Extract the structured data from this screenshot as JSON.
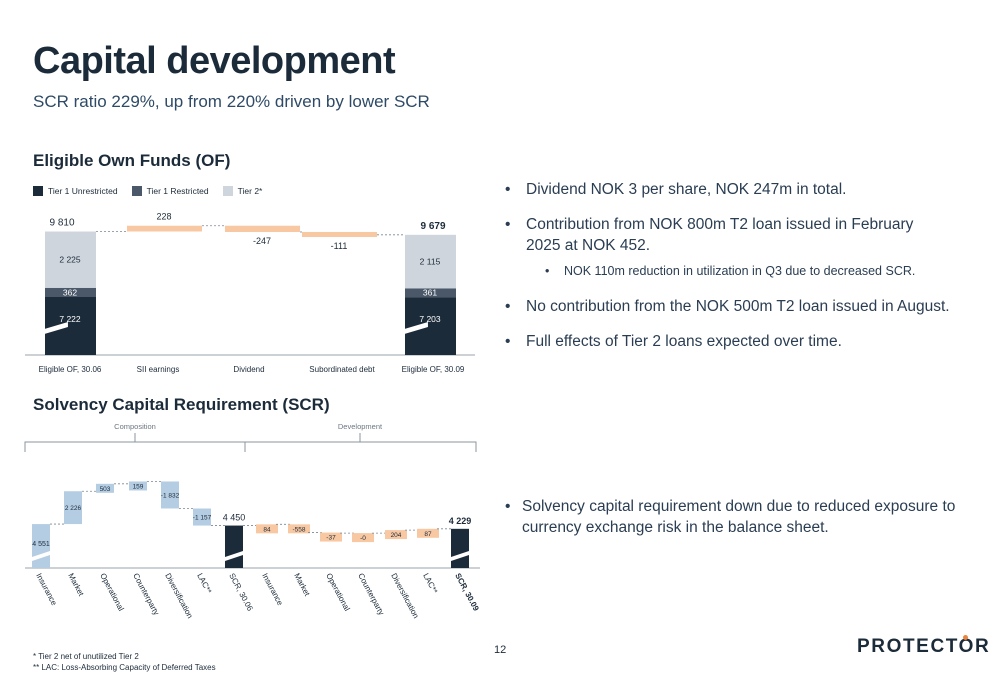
{
  "page": {
    "title": "Capital development",
    "subtitle": "SCR ratio 229%, up from 220% driven by lower SCR",
    "page_number": "12",
    "logo": "PROTECTOR",
    "footnotes": [
      "* Tier 2 net of unutilized Tier 2",
      "** LAC: Loss-Absorbing Capacity of Deferred Taxes"
    ]
  },
  "sections": {
    "of_heading": "Eligible Own Funds (OF)",
    "scr_heading": "Solvency Capital Requirement (SCR)"
  },
  "colors": {
    "tier1_unrestricted": "#1c2b3a",
    "tier1_restricted": "#4a5869",
    "tier2": "#cfd5dc",
    "positive": "#f8c8a3",
    "scr_bar": "#b4cde3",
    "scr_total": "#1c2b3a",
    "accent": "#e8853e"
  },
  "bullets_top": [
    {
      "text": "Dividend NOK 3 per share, NOK 247m in total."
    },
    {
      "text": "Contribution from NOK 800m T2 loan issued in February 2025 at NOK 452."
    },
    {
      "text": "NOK 110m reduction in utilization in Q3 due to decreased SCR.",
      "sub": true
    },
    {
      "text": "No contribution from the NOK 500m T2 loan issued in August."
    },
    {
      "text": "Full effects of Tier 2 loans expected over time."
    }
  ],
  "bullets_bottom": [
    {
      "text": "Solvency capital requirement down due to reduced exposure to currency exchange risk in the balance sheet."
    }
  ],
  "chart_data": [
    {
      "type": "bar",
      "subtype": "waterfall-stacked",
      "title": "Eligible Own Funds (OF)",
      "legend": [
        "Tier 1 Unrestricted",
        "Tier 1 Restricted",
        "Tier 2*"
      ],
      "legend_position": "top-left",
      "categories": [
        "Eligible OF, 30.06",
        "SII earnings",
        "Dividend",
        "Subordinated debt",
        "Eligible OF, 30.09"
      ],
      "totals": [
        {
          "category": "Eligible OF, 30.06",
          "total": "9 810",
          "tier1_unrestricted": 7222,
          "tier1_restricted": 362,
          "tier2": 2225,
          "labels": {
            "tier1_unrestricted": "7 222",
            "tier1_restricted": "362",
            "tier2": "2 225"
          }
        },
        {
          "category": "Eligible OF, 30.09",
          "total": "9 679",
          "tier1_unrestricted": 7203,
          "tier1_restricted": 361,
          "tier2": 2115,
          "labels": {
            "tier1_unrestricted": "7 203",
            "tier1_restricted": "361",
            "tier2": "2 115"
          }
        }
      ],
      "changes": [
        {
          "category": "SII earnings",
          "value": 228,
          "label": "228"
        },
        {
          "category": "Dividend",
          "value": -247,
          "label": "-247"
        },
        {
          "category": "Subordinated debt",
          "value": -111,
          "label": "-111"
        }
      ],
      "axis_break": true
    },
    {
      "type": "bar",
      "subtype": "waterfall",
      "title": "Solvency Capital Requirement (SCR)",
      "groups": [
        {
          "name": "Composition"
        },
        {
          "name": "Development"
        }
      ],
      "categories": [
        "Insurance",
        "Market",
        "Operational",
        "Counterparty",
        "Diversification",
        "LAC**",
        "SCR, 30.06",
        "Insurance",
        "Market",
        "Operational",
        "Counterparty",
        "Diversification",
        "LAC**",
        "SCR, 30.09"
      ],
      "values": [
        4551,
        2226,
        503,
        159,
        -1832,
        -1157,
        4450,
        84,
        -558,
        -37,
        0,
        204,
        87,
        4229
      ],
      "labels": [
        "4 551",
        "2 226",
        "503",
        "159",
        "-1 832",
        "-1 157",
        "4 450",
        "84",
        "-558",
        "-37",
        "-0",
        "204",
        "87",
        "4 229"
      ],
      "bar_kind": [
        "comp",
        "comp",
        "comp",
        "comp",
        "comp",
        "comp",
        "total",
        "dev",
        "dev",
        "dev",
        "dev",
        "dev",
        "dev",
        "total"
      ],
      "axis_break": true
    }
  ]
}
